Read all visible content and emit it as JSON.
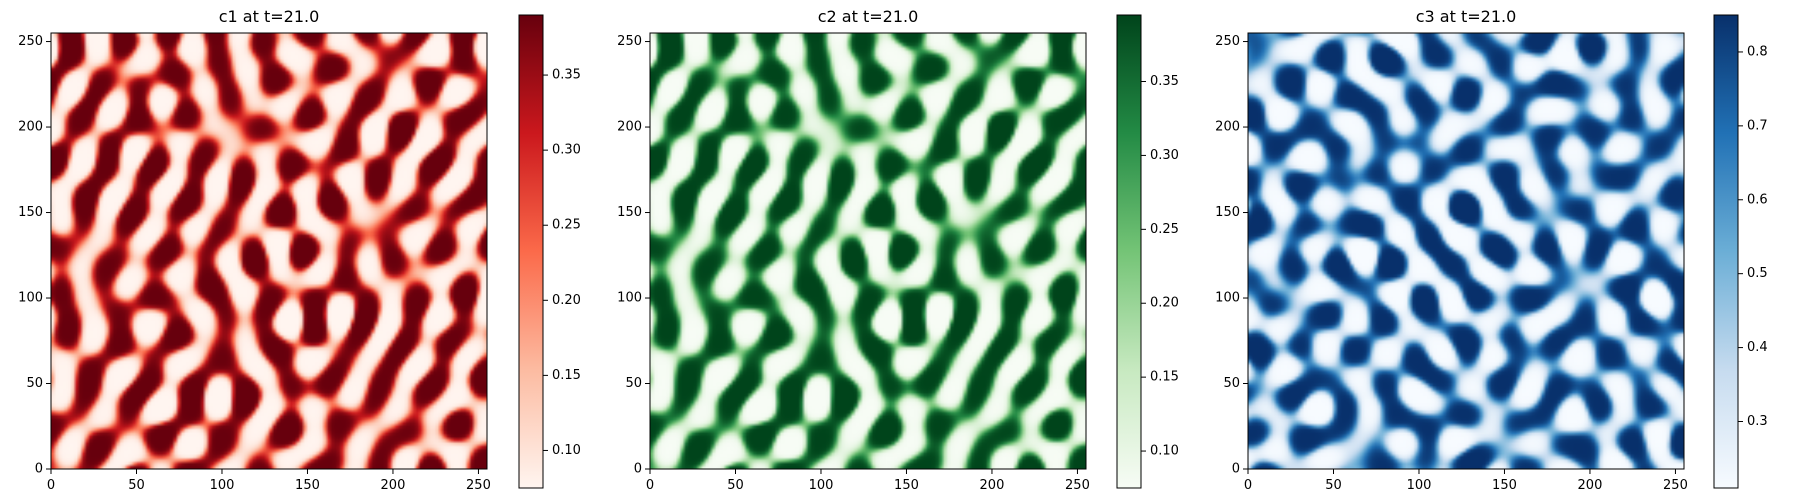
{
  "chart_data": [
    {
      "type": "heatmap",
      "title": "c1 at t=21.0",
      "xlim": [
        0,
        255
      ],
      "ylim": [
        0,
        255
      ],
      "xticks": [
        0,
        50,
        100,
        150,
        200,
        250
      ],
      "yticks": [
        0,
        50,
        100,
        150,
        200,
        250
      ],
      "colormap": "Reds",
      "colormap_stops": [
        "#fff5f0",
        "#fcbba1",
        "#fb6a4a",
        "#cb181d",
        "#67000d"
      ],
      "colorbar": {
        "min": 0.075,
        "max": 0.39,
        "ticks": [
          0.1,
          0.15,
          0.2,
          0.25,
          0.3,
          0.35
        ],
        "tick_labels": [
          "0.10",
          "0.15",
          "0.20",
          "0.25",
          "0.30",
          "0.35"
        ]
      },
      "pattern": "labyrinthine stripes/spots",
      "seed": 1
    },
    {
      "type": "heatmap",
      "title": "c2 at t=21.0",
      "xlim": [
        0,
        255
      ],
      "ylim": [
        0,
        255
      ],
      "xticks": [
        0,
        50,
        100,
        150,
        200,
        250
      ],
      "yticks": [
        0,
        50,
        100,
        150,
        200,
        250
      ],
      "colormap": "Greens",
      "colormap_stops": [
        "#f7fcf5",
        "#c7e9c0",
        "#74c476",
        "#238b45",
        "#00441b"
      ],
      "colorbar": {
        "min": 0.075,
        "max": 0.395,
        "ticks": [
          0.1,
          0.15,
          0.2,
          0.25,
          0.3,
          0.35
        ],
        "tick_labels": [
          "0.10",
          "0.15",
          "0.20",
          "0.25",
          "0.30",
          "0.35"
        ]
      },
      "pattern": "labyrinthine stripes/spots",
      "seed": 1
    },
    {
      "type": "heatmap",
      "title": "c3 at t=21.0",
      "xlim": [
        0,
        255
      ],
      "ylim": [
        0,
        255
      ],
      "xticks": [
        0,
        50,
        100,
        150,
        200,
        250
      ],
      "yticks": [
        0,
        50,
        100,
        150,
        200,
        250
      ],
      "colormap": "Blues",
      "colormap_stops": [
        "#f7fbff",
        "#c6dbef",
        "#6baed6",
        "#2171b5",
        "#08306b"
      ],
      "colorbar": {
        "min": 0.21,
        "max": 0.85,
        "ticks": [
          0.3,
          0.4,
          0.5,
          0.6,
          0.7,
          0.8
        ],
        "tick_labels": [
          "0.3",
          "0.4",
          "0.5",
          "0.6",
          "0.7",
          "0.8"
        ]
      },
      "pattern": "labyrinthine stripes/spots",
      "seed": 2
    }
  ]
}
